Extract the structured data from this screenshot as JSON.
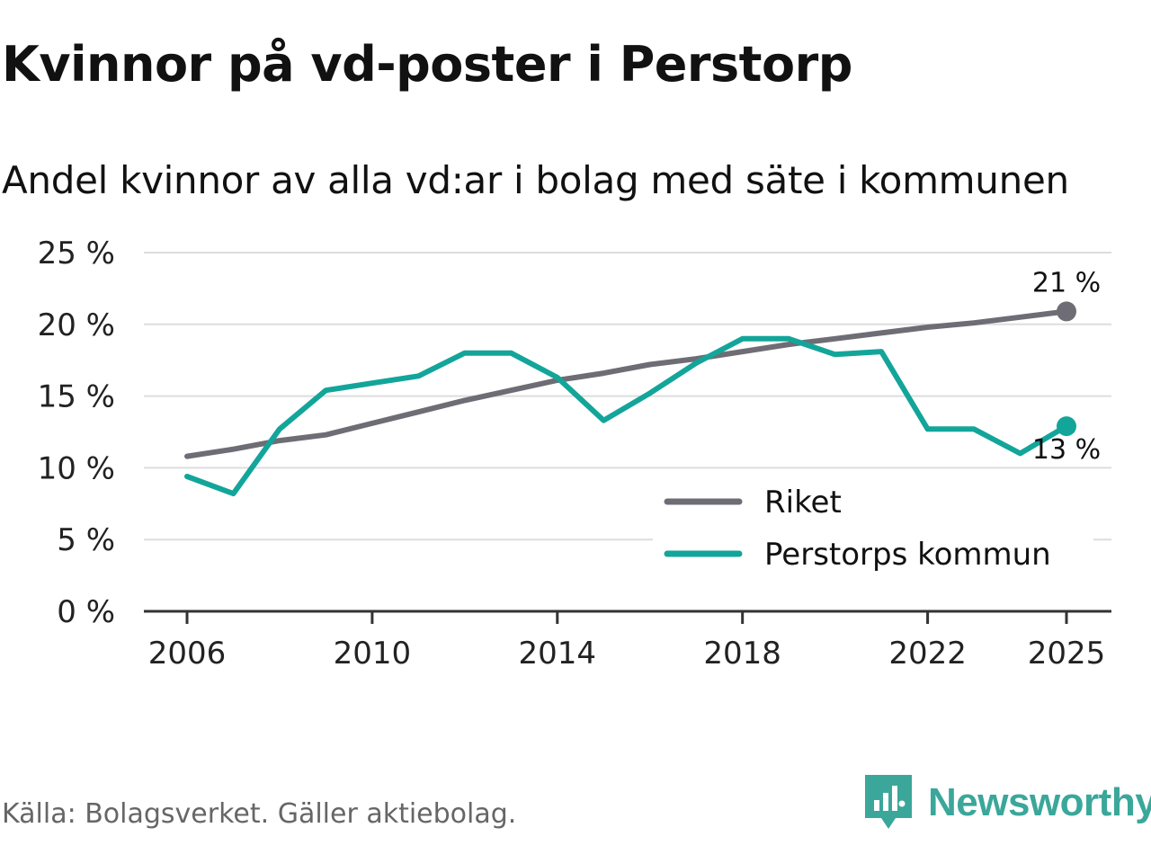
{
  "title": "Kvinnor på vd-poster i Perstorp",
  "subtitle": "Andel kvinnor av alla vd:ar i bolag med säte i kommunen",
  "source": "Källa: Bolagsverket. Gäller aktiebolag.",
  "brand": {
    "name": "Newsworthy",
    "icon": "newsworthy-logo-icon",
    "color": "#3aa79a"
  },
  "colors": {
    "riket": "#6e6d75",
    "perstorp": "#13a59a",
    "grid": "#dddddd",
    "axis": "#333333"
  },
  "chart_data": {
    "type": "line",
    "title": "Kvinnor på vd-poster i Perstorp",
    "subtitle": "Andel kvinnor av alla vd:ar i bolag med säte i kommunen",
    "xlabel": "",
    "ylabel": "",
    "xlim": [
      2006,
      2025
    ],
    "ylim": [
      0,
      25
    ],
    "grid": true,
    "x": [
      2006,
      2007,
      2008,
      2009,
      2010,
      2011,
      2012,
      2013,
      2014,
      2015,
      2016,
      2017,
      2018,
      2019,
      2020,
      2021,
      2022,
      2023,
      2024,
      2025
    ],
    "x_ticks": [
      {
        "value": 2006,
        "label": "2006"
      },
      {
        "value": 2010,
        "label": "2010"
      },
      {
        "value": 2014,
        "label": "2014"
      },
      {
        "value": 2018,
        "label": "2018"
      },
      {
        "value": 2022,
        "label": "2022"
      },
      {
        "value": 2025,
        "label": "2025"
      }
    ],
    "y_ticks": [
      {
        "value": 0,
        "label": "0 %"
      },
      {
        "value": 5,
        "label": "5 %"
      },
      {
        "value": 10,
        "label": "10 %"
      },
      {
        "value": 15,
        "label": "15 %"
      },
      {
        "value": 20,
        "label": "20 %"
      },
      {
        "value": 25,
        "label": "25 %"
      }
    ],
    "series": [
      {
        "name": "Riket",
        "color": "#6e6d75",
        "end_label": "21 %",
        "values": [
          10.8,
          11.3,
          11.9,
          12.3,
          13.1,
          13.9,
          14.7,
          15.4,
          16.1,
          16.6,
          17.2,
          17.6,
          18.1,
          18.6,
          19.0,
          19.4,
          19.8,
          20.1,
          20.5,
          20.9
        ]
      },
      {
        "name": "Perstorps kommun",
        "color": "#13a59a",
        "end_label": "13 %",
        "values": [
          9.4,
          8.2,
          12.7,
          15.4,
          15.9,
          16.4,
          18.0,
          18.0,
          16.3,
          13.3,
          15.2,
          17.3,
          19.0,
          19.0,
          17.9,
          18.1,
          12.7,
          12.7,
          11.0,
          12.9
        ]
      }
    ],
    "legend_position": "bottom-right"
  }
}
